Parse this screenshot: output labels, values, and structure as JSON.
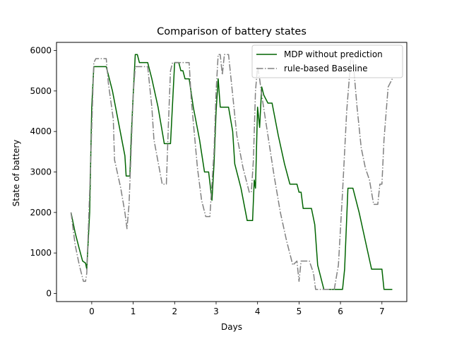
{
  "chart_data": {
    "type": "line",
    "title": "Comparison of battery states",
    "xlabel": "Days",
    "ylabel": "State of battery",
    "xlim": [
      -0.85,
      7.6
    ],
    "ylim": [
      -200,
      6200
    ],
    "xticks": [
      0,
      1,
      2,
      3,
      4,
      5,
      6,
      7
    ],
    "yticks": [
      0,
      1000,
      2000,
      3000,
      4000,
      5000,
      6000
    ],
    "grid": false,
    "legend_position": "upper right",
    "series": [
      {
        "name": "MDP without prediction",
        "color": "#006400",
        "dash": "solid",
        "points": [
          [
            -0.5,
            2000
          ],
          [
            -0.4,
            1500
          ],
          [
            -0.3,
            1100
          ],
          [
            -0.22,
            800
          ],
          [
            -0.15,
            750
          ],
          [
            -0.12,
            600
          ],
          [
            -0.05,
            2000
          ],
          [
            0.0,
            4600
          ],
          [
            0.05,
            5600
          ],
          [
            0.35,
            5600
          ],
          [
            0.5,
            5000
          ],
          [
            0.65,
            4200
          ],
          [
            0.8,
            3400
          ],
          [
            0.83,
            2900
          ],
          [
            0.92,
            2900
          ],
          [
            0.95,
            3800
          ],
          [
            1.0,
            4900
          ],
          [
            1.05,
            5900
          ],
          [
            1.1,
            5900
          ],
          [
            1.15,
            5700
          ],
          [
            1.35,
            5700
          ],
          [
            1.45,
            5300
          ],
          [
            1.6,
            4600
          ],
          [
            1.75,
            3700
          ],
          [
            1.9,
            3700
          ],
          [
            1.95,
            4700
          ],
          [
            2.0,
            5700
          ],
          [
            2.1,
            5700
          ],
          [
            2.15,
            5500
          ],
          [
            2.2,
            5500
          ],
          [
            2.25,
            5300
          ],
          [
            2.35,
            5300
          ],
          [
            2.45,
            4600
          ],
          [
            2.6,
            3800
          ],
          [
            2.72,
            3000
          ],
          [
            2.82,
            3000
          ],
          [
            2.9,
            2300
          ],
          [
            2.95,
            3200
          ],
          [
            3.0,
            4500
          ],
          [
            3.05,
            5300
          ],
          [
            3.1,
            4600
          ],
          [
            3.3,
            4600
          ],
          [
            3.35,
            4300
          ],
          [
            3.4,
            4000
          ],
          [
            3.45,
            3200
          ],
          [
            3.6,
            2600
          ],
          [
            3.75,
            1800
          ],
          [
            3.88,
            1800
          ],
          [
            3.92,
            2800
          ],
          [
            3.95,
            2600
          ],
          [
            4.0,
            4600
          ],
          [
            4.05,
            4100
          ],
          [
            4.1,
            5100
          ],
          [
            4.15,
            4900
          ],
          [
            4.25,
            4700
          ],
          [
            4.35,
            4700
          ],
          [
            4.5,
            3900
          ],
          [
            4.65,
            3200
          ],
          [
            4.78,
            2700
          ],
          [
            4.95,
            2700
          ],
          [
            5.0,
            2500
          ],
          [
            5.05,
            2500
          ],
          [
            5.1,
            2100
          ],
          [
            5.3,
            2100
          ],
          [
            5.38,
            1700
          ],
          [
            5.45,
            700
          ],
          [
            5.6,
            100
          ],
          [
            6.05,
            100
          ],
          [
            6.1,
            600
          ],
          [
            6.18,
            2600
          ],
          [
            6.3,
            2600
          ],
          [
            6.45,
            2000
          ],
          [
            6.6,
            1300
          ],
          [
            6.75,
            600
          ],
          [
            7.0,
            600
          ],
          [
            7.05,
            100
          ],
          [
            7.25,
            100
          ]
        ]
      },
      {
        "name": "rule-based Baseline",
        "color": "#808080",
        "dash": "dashdot",
        "points": [
          [
            -0.5,
            2000
          ],
          [
            -0.4,
            1200
          ],
          [
            -0.3,
            700
          ],
          [
            -0.2,
            300
          ],
          [
            -0.15,
            300
          ],
          [
            -0.12,
            500
          ],
          [
            -0.05,
            2500
          ],
          [
            0.05,
            5700
          ],
          [
            0.1,
            5800
          ],
          [
            0.35,
            5800
          ],
          [
            0.4,
            5200
          ],
          [
            0.52,
            4300
          ],
          [
            0.55,
            3300
          ],
          [
            0.7,
            2600
          ],
          [
            0.8,
            2000
          ],
          [
            0.85,
            1600
          ],
          [
            0.9,
            2200
          ],
          [
            0.95,
            3500
          ],
          [
            1.0,
            4900
          ],
          [
            1.05,
            5600
          ],
          [
            1.35,
            5600
          ],
          [
            1.45,
            4600
          ],
          [
            1.5,
            3800
          ],
          [
            1.7,
            2700
          ],
          [
            1.8,
            2700
          ],
          [
            1.85,
            4200
          ],
          [
            1.9,
            5500
          ],
          [
            1.95,
            5700
          ],
          [
            2.35,
            5700
          ],
          [
            2.4,
            4800
          ],
          [
            2.55,
            3100
          ],
          [
            2.65,
            2300
          ],
          [
            2.75,
            1900
          ],
          [
            2.85,
            1900
          ],
          [
            2.95,
            3500
          ],
          [
            3.0,
            5000
          ],
          [
            3.05,
            5900
          ],
          [
            3.1,
            5900
          ],
          [
            3.15,
            5400
          ],
          [
            3.2,
            5900
          ],
          [
            3.3,
            5900
          ],
          [
            3.4,
            4900
          ],
          [
            3.5,
            3900
          ],
          [
            3.65,
            3100
          ],
          [
            3.8,
            2500
          ],
          [
            3.85,
            2500
          ],
          [
            3.9,
            3300
          ],
          [
            3.95,
            5000
          ],
          [
            4.0,
            5600
          ],
          [
            4.05,
            5300
          ],
          [
            4.1,
            4900
          ],
          [
            4.25,
            3900
          ],
          [
            4.4,
            2900
          ],
          [
            4.55,
            2000
          ],
          [
            4.7,
            1300
          ],
          [
            4.85,
            700
          ],
          [
            4.95,
            800
          ],
          [
            5.0,
            300
          ],
          [
            5.05,
            800
          ],
          [
            5.25,
            800
          ],
          [
            5.35,
            500
          ],
          [
            5.4,
            100
          ],
          [
            5.85,
            100
          ],
          [
            5.95,
            700
          ],
          [
            6.05,
            2500
          ],
          [
            6.15,
            4500
          ],
          [
            6.25,
            5800
          ],
          [
            6.3,
            5800
          ],
          [
            6.4,
            4600
          ],
          [
            6.5,
            3600
          ],
          [
            6.6,
            3100
          ],
          [
            6.7,
            2800
          ],
          [
            6.8,
            2200
          ],
          [
            6.9,
            2200
          ],
          [
            6.95,
            2700
          ],
          [
            7.0,
            2700
          ],
          [
            7.05,
            3800
          ],
          [
            7.15,
            5100
          ],
          [
            7.25,
            5300
          ]
        ]
      }
    ]
  }
}
